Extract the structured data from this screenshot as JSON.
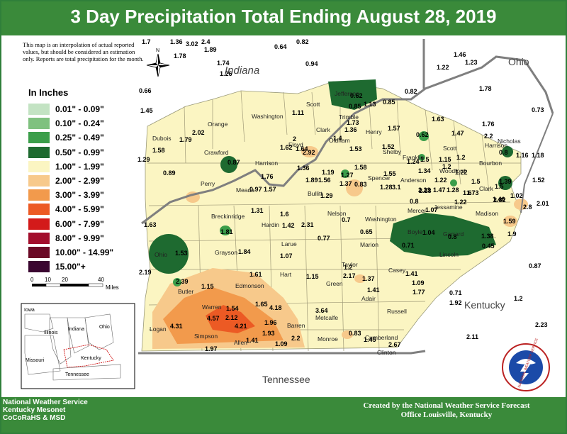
{
  "title": "3 Day Precipitation Total Ending August 28, 2019",
  "note": "This map is an interpolation of actual reported values, but should be considered an estimation only. Reports are total precipitation for the month.",
  "legend": {
    "title": "In Inches",
    "items": [
      {
        "label": "0.01\" - 0.09\"",
        "color": "#c3e3c3"
      },
      {
        "label": "0.10\" - 0.24\"",
        "color": "#7fc17f"
      },
      {
        "label": "0.25\" - 0.49\"",
        "color": "#3b9e4a"
      },
      {
        "label": "0.50\" - 0.99\"",
        "color": "#1e6a30"
      },
      {
        "label": "1.00\" - 1.99\"",
        "color": "#fbf5c2"
      },
      {
        "label": "2.00\" - 2.99\"",
        "color": "#f7c98b"
      },
      {
        "label": "3.00\" - 3.99\"",
        "color": "#f29a4c"
      },
      {
        "label": "4.00\" - 5.99\"",
        "color": "#ec5a24"
      },
      {
        "label": "6.00\" - 7.99\"",
        "color": "#d31a1a"
      },
      {
        "label": "8.00\" - 9.99\"",
        "color": "#a20e2c"
      },
      {
        "label": "10.00\" - 14.99\"",
        "color": "#6b0a26"
      },
      {
        "label": "15.00\"+",
        "color": "#3a0630"
      }
    ]
  },
  "scale": {
    "ticks": [
      "0",
      "10",
      "20",
      "40"
    ],
    "unit": "Miles"
  },
  "compass": "N",
  "states": {
    "indiana": "Indiana",
    "ohio": "Ohio",
    "kentucky": "Kentucky",
    "tennessee": "Tennessee"
  },
  "inset": {
    "iowa": "Iowa",
    "illinois": "Illinois",
    "indiana": "Indiana",
    "ohio": "Ohio",
    "missouri": "Missouri",
    "kentucky": "Kentucky",
    "tennessee": "Tennessee"
  },
  "counties": [
    "Scott",
    "Jefferson",
    "Clark",
    "Washington",
    "Orange",
    "Dubois",
    "Crawford",
    "Harrison",
    "Floyd",
    "Oldham",
    "Henry",
    "Trimble",
    "Shelby",
    "Perry",
    "Meade",
    "Bullitt",
    "Spencer",
    "Anderson",
    "Franklin",
    "Woodford",
    "Scott",
    "Harrison",
    "Nicholas",
    "Bourbon",
    "Clark",
    "Madison",
    "Mercer",
    "Jessamine",
    "Boyle",
    "Garrard",
    "Lincoln",
    "Washington",
    "Nelson",
    "Hardin",
    "Breckinridge",
    "Larue",
    "Marion",
    "Grayson",
    "Ohio",
    "Butler",
    "Edmonson",
    "Hart",
    "Green",
    "Taylor",
    "Casey",
    "Adair",
    "Russell",
    "Metcalfe",
    "Barren",
    "Warren",
    "Logan",
    "Simpson",
    "Allen",
    "Monroe",
    "Cumberland",
    "Clinton"
  ],
  "values": [
    {
      "v": "1.7",
      "name": "val"
    },
    {
      "v": "1.36",
      "name": "val"
    },
    {
      "v": "3.02",
      "name": "val"
    },
    {
      "v": "2.4",
      "name": "val"
    },
    {
      "v": "1.89",
      "name": "val"
    },
    {
      "v": "1.78",
      "name": "val"
    },
    {
      "v": "0.64",
      "name": "val"
    },
    {
      "v": "0.82",
      "name": "val"
    },
    {
      "v": "1.74",
      "name": "val"
    },
    {
      "v": "1.26",
      "name": "val"
    },
    {
      "v": "0.94",
      "name": "val"
    },
    {
      "v": "1.46",
      "name": "val"
    },
    {
      "v": "1.22",
      "name": "val"
    },
    {
      "v": "1.23",
      "name": "val"
    },
    {
      "v": "0.66",
      "name": "val"
    },
    {
      "v": "1.45",
      "name": "val"
    },
    {
      "v": "0.62",
      "name": "val"
    },
    {
      "v": "0.82",
      "name": "val"
    },
    {
      "v": "1.78",
      "name": "val"
    },
    {
      "v": "0.73",
      "name": "val"
    },
    {
      "v": "0.85",
      "name": "val"
    },
    {
      "v": "1.13",
      "name": "val"
    },
    {
      "v": "0.85",
      "name": "val"
    },
    {
      "v": "1.11",
      "name": "val"
    },
    {
      "v": "1.63",
      "name": "val"
    },
    {
      "v": "2.02",
      "name": "val"
    },
    {
      "v": "1.36",
      "name": "val"
    },
    {
      "v": "1.73",
      "name": "val"
    },
    {
      "v": "1.57",
      "name": "val"
    },
    {
      "v": "0.62",
      "name": "val"
    },
    {
      "v": "1.47",
      "name": "val"
    },
    {
      "v": "1.76",
      "name": "val"
    },
    {
      "v": "1.58",
      "name": "val"
    },
    {
      "v": "1.79",
      "name": "val"
    },
    {
      "v": "2",
      "name": "val"
    },
    {
      "v": "1.4",
      "name": "val"
    },
    {
      "v": "1.64",
      "name": "val"
    },
    {
      "v": "1.53",
      "name": "val"
    },
    {
      "v": "1.52",
      "name": "val"
    },
    {
      "v": "2.2",
      "name": "val"
    },
    {
      "v": "1.29",
      "name": "val"
    },
    {
      "v": "1.62",
      "name": "val"
    },
    {
      "v": "2.92",
      "name": "val"
    },
    {
      "v": "1.5",
      "name": "val"
    },
    {
      "v": "1.15",
      "name": "val"
    },
    {
      "v": "1.2",
      "name": "val"
    },
    {
      "v": "0.8",
      "name": "val"
    },
    {
      "v": "1.16",
      "name": "val"
    },
    {
      "v": "1.18",
      "name": "val"
    },
    {
      "v": "0.87",
      "name": "val"
    },
    {
      "v": "1.36",
      "name": "val"
    },
    {
      "v": "1.58",
      "name": "val"
    },
    {
      "v": "1.24",
      "name": "val"
    },
    {
      "v": "1.34",
      "name": "val"
    },
    {
      "v": "1.2",
      "name": "val"
    },
    {
      "v": "0.89",
      "name": "val"
    },
    {
      "v": "1.76",
      "name": "val"
    },
    {
      "v": "1.19",
      "name": "val"
    },
    {
      "v": "1.27",
      "name": "val"
    },
    {
      "v": "1.55",
      "name": "val"
    },
    {
      "v": "1.22",
      "name": "val"
    },
    {
      "v": "1.22",
      "name": "val"
    },
    {
      "v": "1.52",
      "name": "val"
    },
    {
      "v": "1.39",
      "name": "val"
    },
    {
      "v": "1.89",
      "name": "val"
    },
    {
      "v": "1.56",
      "name": "val"
    },
    {
      "v": "1.37",
      "name": "val"
    },
    {
      "v": "0.83",
      "name": "val"
    },
    {
      "v": "3.1",
      "name": "val"
    },
    {
      "v": "2.28",
      "name": "val"
    },
    {
      "v": "1.47",
      "name": "val"
    },
    {
      "v": "1.28",
      "name": "val"
    },
    {
      "v": "1.73",
      "name": "val"
    },
    {
      "v": "1.5",
      "name": "val"
    },
    {
      "v": "1.5",
      "name": "val"
    },
    {
      "v": "1.02",
      "name": "val"
    },
    {
      "v": "0.97",
      "name": "val"
    },
    {
      "v": "1.57",
      "name": "val"
    },
    {
      "v": "1.29",
      "name": "val"
    },
    {
      "v": "1.28",
      "name": "val"
    },
    {
      "v": "2.23",
      "name": "val"
    },
    {
      "v": "1.67",
      "name": "val"
    },
    {
      "v": "1.46",
      "name": "val"
    },
    {
      "v": "0.8",
      "name": "val"
    },
    {
      "v": "1.07",
      "name": "val"
    },
    {
      "v": "1.22",
      "name": "val"
    },
    {
      "v": "2.82",
      "name": "val"
    },
    {
      "v": "2.8",
      "name": "val"
    },
    {
      "v": "2.01",
      "name": "val"
    },
    {
      "v": "1.31",
      "name": "val"
    },
    {
      "v": "1.6",
      "name": "val"
    },
    {
      "v": "0.7",
      "name": "val"
    },
    {
      "v": "1.63",
      "name": "val"
    },
    {
      "v": "1.42",
      "name": "val"
    },
    {
      "v": "2.31",
      "name": "val"
    },
    {
      "v": "1.59",
      "name": "val"
    },
    {
      "v": "1.81",
      "name": "val"
    },
    {
      "v": "0.65",
      "name": "val"
    },
    {
      "v": "1.04",
      "name": "val"
    },
    {
      "v": "0.8",
      "name": "val"
    },
    {
      "v": "1.38",
      "name": "val"
    },
    {
      "v": "1.9",
      "name": "val"
    },
    {
      "v": "0.77",
      "name": "val"
    },
    {
      "v": "0.71",
      "name": "val"
    },
    {
      "v": "0.45",
      "name": "val"
    },
    {
      "v": "1.53",
      "name": "val"
    },
    {
      "v": "1.84",
      "name": "val"
    },
    {
      "v": "1.07",
      "name": "val"
    },
    {
      "v": "2.19",
      "name": "val"
    },
    {
      "v": "1.61",
      "name": "val"
    },
    {
      "v": "1.15",
      "name": "val"
    },
    {
      "v": "1.2",
      "name": "val"
    },
    {
      "v": "1.41",
      "name": "val"
    },
    {
      "v": "0.87",
      "name": "val"
    },
    {
      "v": "2.39",
      "name": "val"
    },
    {
      "v": "1.15",
      "name": "val"
    },
    {
      "v": "2.17",
      "name": "val"
    },
    {
      "v": "1.37",
      "name": "val"
    },
    {
      "v": "1.09",
      "name": "val"
    },
    {
      "v": "1.41",
      "name": "val"
    },
    {
      "v": "1.77",
      "name": "val"
    },
    {
      "v": "0.71",
      "name": "val"
    },
    {
      "v": "1.92",
      "name": "val"
    },
    {
      "v": "1.2",
      "name": "val"
    },
    {
      "v": "1.65",
      "name": "val"
    },
    {
      "v": "4.18",
      "name": "val"
    },
    {
      "v": "1.54",
      "name": "val"
    },
    {
      "v": "3.64",
      "name": "val"
    },
    {
      "v": "4.57",
      "name": "val"
    },
    {
      "v": "2.12",
      "name": "val"
    },
    {
      "v": "1.96",
      "name": "val"
    },
    {
      "v": "4.31",
      "name": "val"
    },
    {
      "v": "4.21",
      "name": "val"
    },
    {
      "v": "1.93",
      "name": "val"
    },
    {
      "v": "2.2",
      "name": "val"
    },
    {
      "v": "0.83",
      "name": "val"
    },
    {
      "v": "2.23",
      "name": "val"
    },
    {
      "v": "1.41",
      "name": "val"
    },
    {
      "v": "1.45",
      "name": "val"
    },
    {
      "v": "2.11",
      "name": "val"
    },
    {
      "v": "1.09",
      "name": "val"
    },
    {
      "v": "2.67",
      "name": "val"
    },
    {
      "v": "1.97",
      "name": "val"
    }
  ],
  "footer": {
    "left": [
      "National Weather Service",
      "Kentucky Mesonet",
      "CoCoRaHS & MSD"
    ],
    "right": [
      "Created by the National Weather Service Forecast",
      "Office Louisville, Kentucky"
    ]
  },
  "logo_text": "NATIONAL WEATHER SERVICE"
}
